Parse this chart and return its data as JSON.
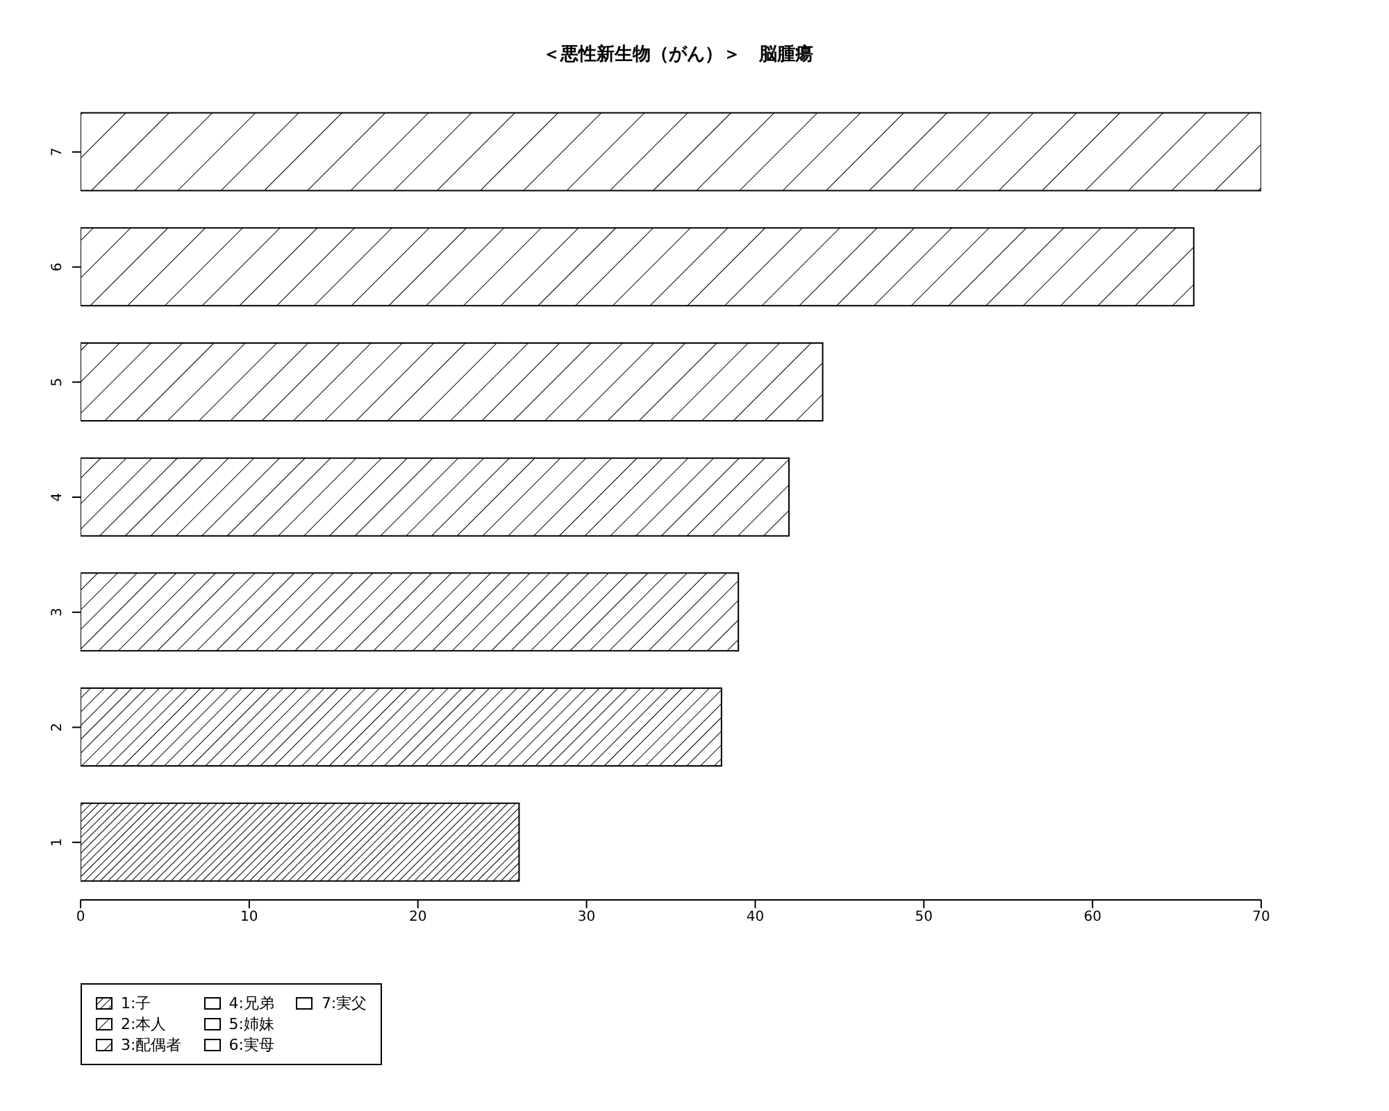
{
  "chart_data": {
    "type": "bar",
    "orientation": "horizontal",
    "title": "＜悪性新生物（がん）＞　脳腫瘍",
    "categories": [
      "7",
      "6",
      "5",
      "4",
      "3",
      "2",
      "1"
    ],
    "values": [
      70,
      66,
      44,
      42,
      39,
      38,
      26
    ],
    "color": "#000000",
    "xlim": [
      0,
      70
    ],
    "xticks": [
      0,
      10,
      20,
      30,
      40,
      50,
      60,
      70
    ],
    "grid": false,
    "legend": false,
    "annotations": [
      "1:子",
      "2:本人",
      "3:配偶者",
      "4:兄弟",
      "5:姉妹",
      "6:実母",
      "7:実父"
    ]
  }
}
